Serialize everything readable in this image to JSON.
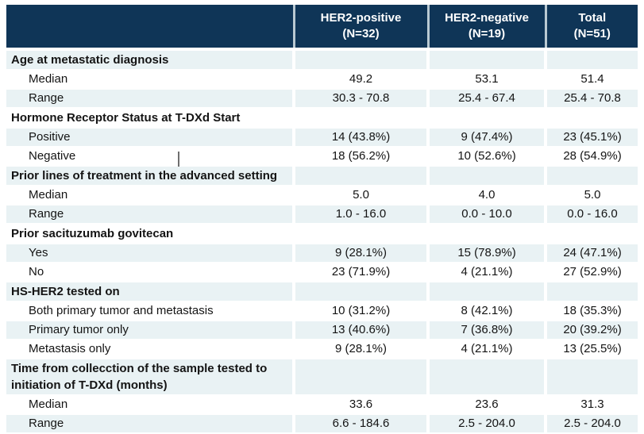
{
  "table": {
    "title_semantic": "Patient characteristics table",
    "header": {
      "row_label_column": "",
      "columns": [
        {
          "line1": "HER2-positive",
          "line2": "(N=32)"
        },
        {
          "line1": "HER2-negative",
          "line2": "(N=19)"
        },
        {
          "line1": "Total",
          "line2": "(N=51)"
        }
      ]
    },
    "rows": [
      {
        "type": "section",
        "label": "Age at metastatic diagnosis",
        "values": [
          "",
          "",
          ""
        ]
      },
      {
        "type": "data",
        "label": "Median",
        "values": [
          "49.2",
          "53.1",
          "51.4"
        ]
      },
      {
        "type": "data",
        "label": "Range",
        "values": [
          "30.3 - 70.8",
          "25.4 - 67.4",
          "25.4 - 70.8"
        ]
      },
      {
        "type": "section",
        "label": "Hormone Receptor Status at T-DXd Start",
        "values": [
          "",
          "",
          ""
        ]
      },
      {
        "type": "data",
        "label": "Positive",
        "values": [
          "14 (43.8%)",
          "9 (47.4%)",
          "23 (45.1%)"
        ]
      },
      {
        "type": "data",
        "label": "Negative",
        "values": [
          "18 (56.2%)",
          "10 (52.6%)",
          "28 (54.9%)"
        ]
      },
      {
        "type": "section",
        "label": "Prior lines of treatment in the advanced setting",
        "values": [
          "",
          "",
          ""
        ]
      },
      {
        "type": "data",
        "label": "Median",
        "values": [
          "5.0",
          "4.0",
          "5.0"
        ]
      },
      {
        "type": "data",
        "label": "Range",
        "values": [
          "1.0 - 16.0",
          "0.0 - 10.0",
          "0.0 - 16.0"
        ]
      },
      {
        "type": "section",
        "label": "Prior sacituzumab govitecan",
        "values": [
          "",
          "",
          ""
        ]
      },
      {
        "type": "data",
        "label": "Yes",
        "values": [
          "9 (28.1%)",
          "15 (78.9%)",
          "24 (47.1%)"
        ]
      },
      {
        "type": "data",
        "label": "No",
        "values": [
          "23 (71.9%)",
          "4 (21.1%)",
          "27 (52.9%)"
        ]
      },
      {
        "type": "section",
        "label": "HS-HER2 tested on",
        "values": [
          "",
          "",
          ""
        ]
      },
      {
        "type": "data",
        "label": "Both primary tumor and metastasis",
        "values": [
          "10 (31.2%)",
          "8 (42.1%)",
          "18 (35.3%)"
        ]
      },
      {
        "type": "data",
        "label": "Primary tumor only",
        "values": [
          "13 (40.6%)",
          "7 (36.8%)",
          "20 (39.2%)"
        ]
      },
      {
        "type": "data",
        "label": "Metastasis only",
        "values": [
          "9 (28.1%)",
          "4 (21.1%)",
          "13 (25.5%)"
        ]
      },
      {
        "type": "section",
        "label": "Time from collecction of the sample tested to initiation of T-DXd (months)",
        "values": [
          "",
          "",
          ""
        ]
      },
      {
        "type": "data",
        "label": "Median",
        "values": [
          "33.6",
          "23.6",
          "31.3"
        ]
      },
      {
        "type": "data",
        "label": "Range",
        "values": [
          "6.6 - 184.6",
          "2.5 - 204.0",
          "2.5 - 204.0"
        ]
      }
    ],
    "colors": {
      "header_background": "#0f3557",
      "header_text": "#ffffff",
      "banded_row_background": "#e9f2f4",
      "plain_row_background": "#ffffff",
      "body_text": "#141414"
    }
  }
}
